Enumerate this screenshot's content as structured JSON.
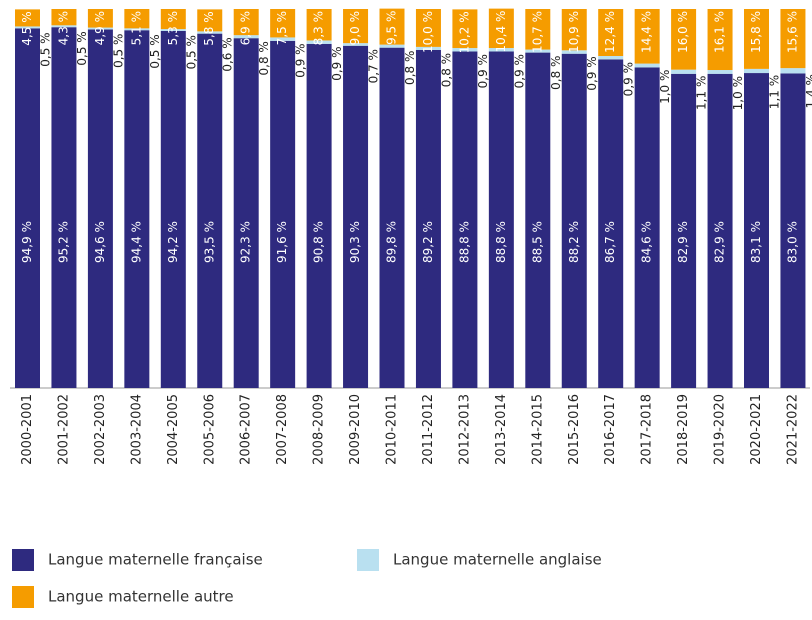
{
  "chart_data": {
    "type": "stacked_bar",
    "categories": [
      "2000-2001",
      "2001-2002",
      "2002-2003",
      "2003-2004",
      "2004-2005",
      "2005-2006",
      "2006-2007",
      "2007-2008",
      "2008-2009",
      "2009-2010",
      "2010-2011",
      "2011-2012",
      "2012-2013",
      "2013-2014",
      "2014-2015",
      "2015-2016",
      "2016-2017",
      "2017-2018",
      "2018-2019",
      "2019-2020",
      "2020-2021",
      "2021-2022"
    ],
    "series": [
      {
        "name": "Langue maternelle française",
        "color": "#2e2a7f",
        "values": [
          94.9,
          95.2,
          94.6,
          94.4,
          94.2,
          93.5,
          92.3,
          91.6,
          90.8,
          90.3,
          89.8,
          89.2,
          88.8,
          88.8,
          88.5,
          88.2,
          86.7,
          84.6,
          82.9,
          82.9,
          83.1,
          83.0
        ],
        "value_labels": [
          "94,9 %",
          "95,2 %",
          "94,6 %",
          "94,4 %",
          "94,2 %",
          "93,5 %",
          "92,3 %",
          "91,6 %",
          "90,8 %",
          "90,3 %",
          "89,8 %",
          "89,2 %",
          "88,8 %",
          "88,8 %",
          "88,5 %",
          "88,2 %",
          "86,7 %",
          "84,6 %",
          "82,9 %",
          "82,9 %",
          "83,1 %",
          "83,0 %"
        ]
      },
      {
        "name": "Langue maternelle anglaise",
        "color": "#b9e0f0",
        "values": [
          0.5,
          0.5,
          0.5,
          0.5,
          0.5,
          0.6,
          0.8,
          0.9,
          0.9,
          0.7,
          0.8,
          0.8,
          0.9,
          0.9,
          0.8,
          0.9,
          0.9,
          1.0,
          1.1,
          1.0,
          1.1,
          1.4
        ],
        "value_labels": [
          "0,5 %",
          "0,5 %",
          "0,5 %",
          "0,5 %",
          "0,5 %",
          "0,6 %",
          "0,8 %",
          "0,9 %",
          "0,9 %",
          "0,7 %",
          "0,8 %",
          "0,8 %",
          "0,9 %",
          "0,9 %",
          "0,8 %",
          "0,9 %",
          "0,9 %",
          "1,0 %",
          "1,1 %",
          "1,0 %",
          "1,1 %",
          "1,4 %"
        ]
      },
      {
        "name": "Langue maternelle autre",
        "color": "#f59c00",
        "values": [
          4.5,
          4.3,
          4.9,
          5.1,
          5.3,
          5.8,
          6.9,
          7.5,
          8.3,
          9.0,
          9.5,
          10.0,
          10.2,
          10.4,
          10.7,
          10.9,
          12.4,
          14.4,
          16.0,
          16.1,
          15.8,
          15.6
        ],
        "value_labels": [
          "4,5 %",
          "4,3 %",
          "4,9 %",
          "5,1 %",
          "5,3 %",
          "5,8 %",
          "6,9 %",
          "7,5 %",
          "8,3 %",
          "9,0 %",
          "9,5 %",
          "10,0 %",
          "10,2 %",
          "10,4 %",
          "10,7 %",
          "10,9 %",
          "12,4 %",
          "14,4 %",
          "16,0 %",
          "16,1 %",
          "15,8 %",
          "15,6 %"
        ]
      }
    ]
  }
}
